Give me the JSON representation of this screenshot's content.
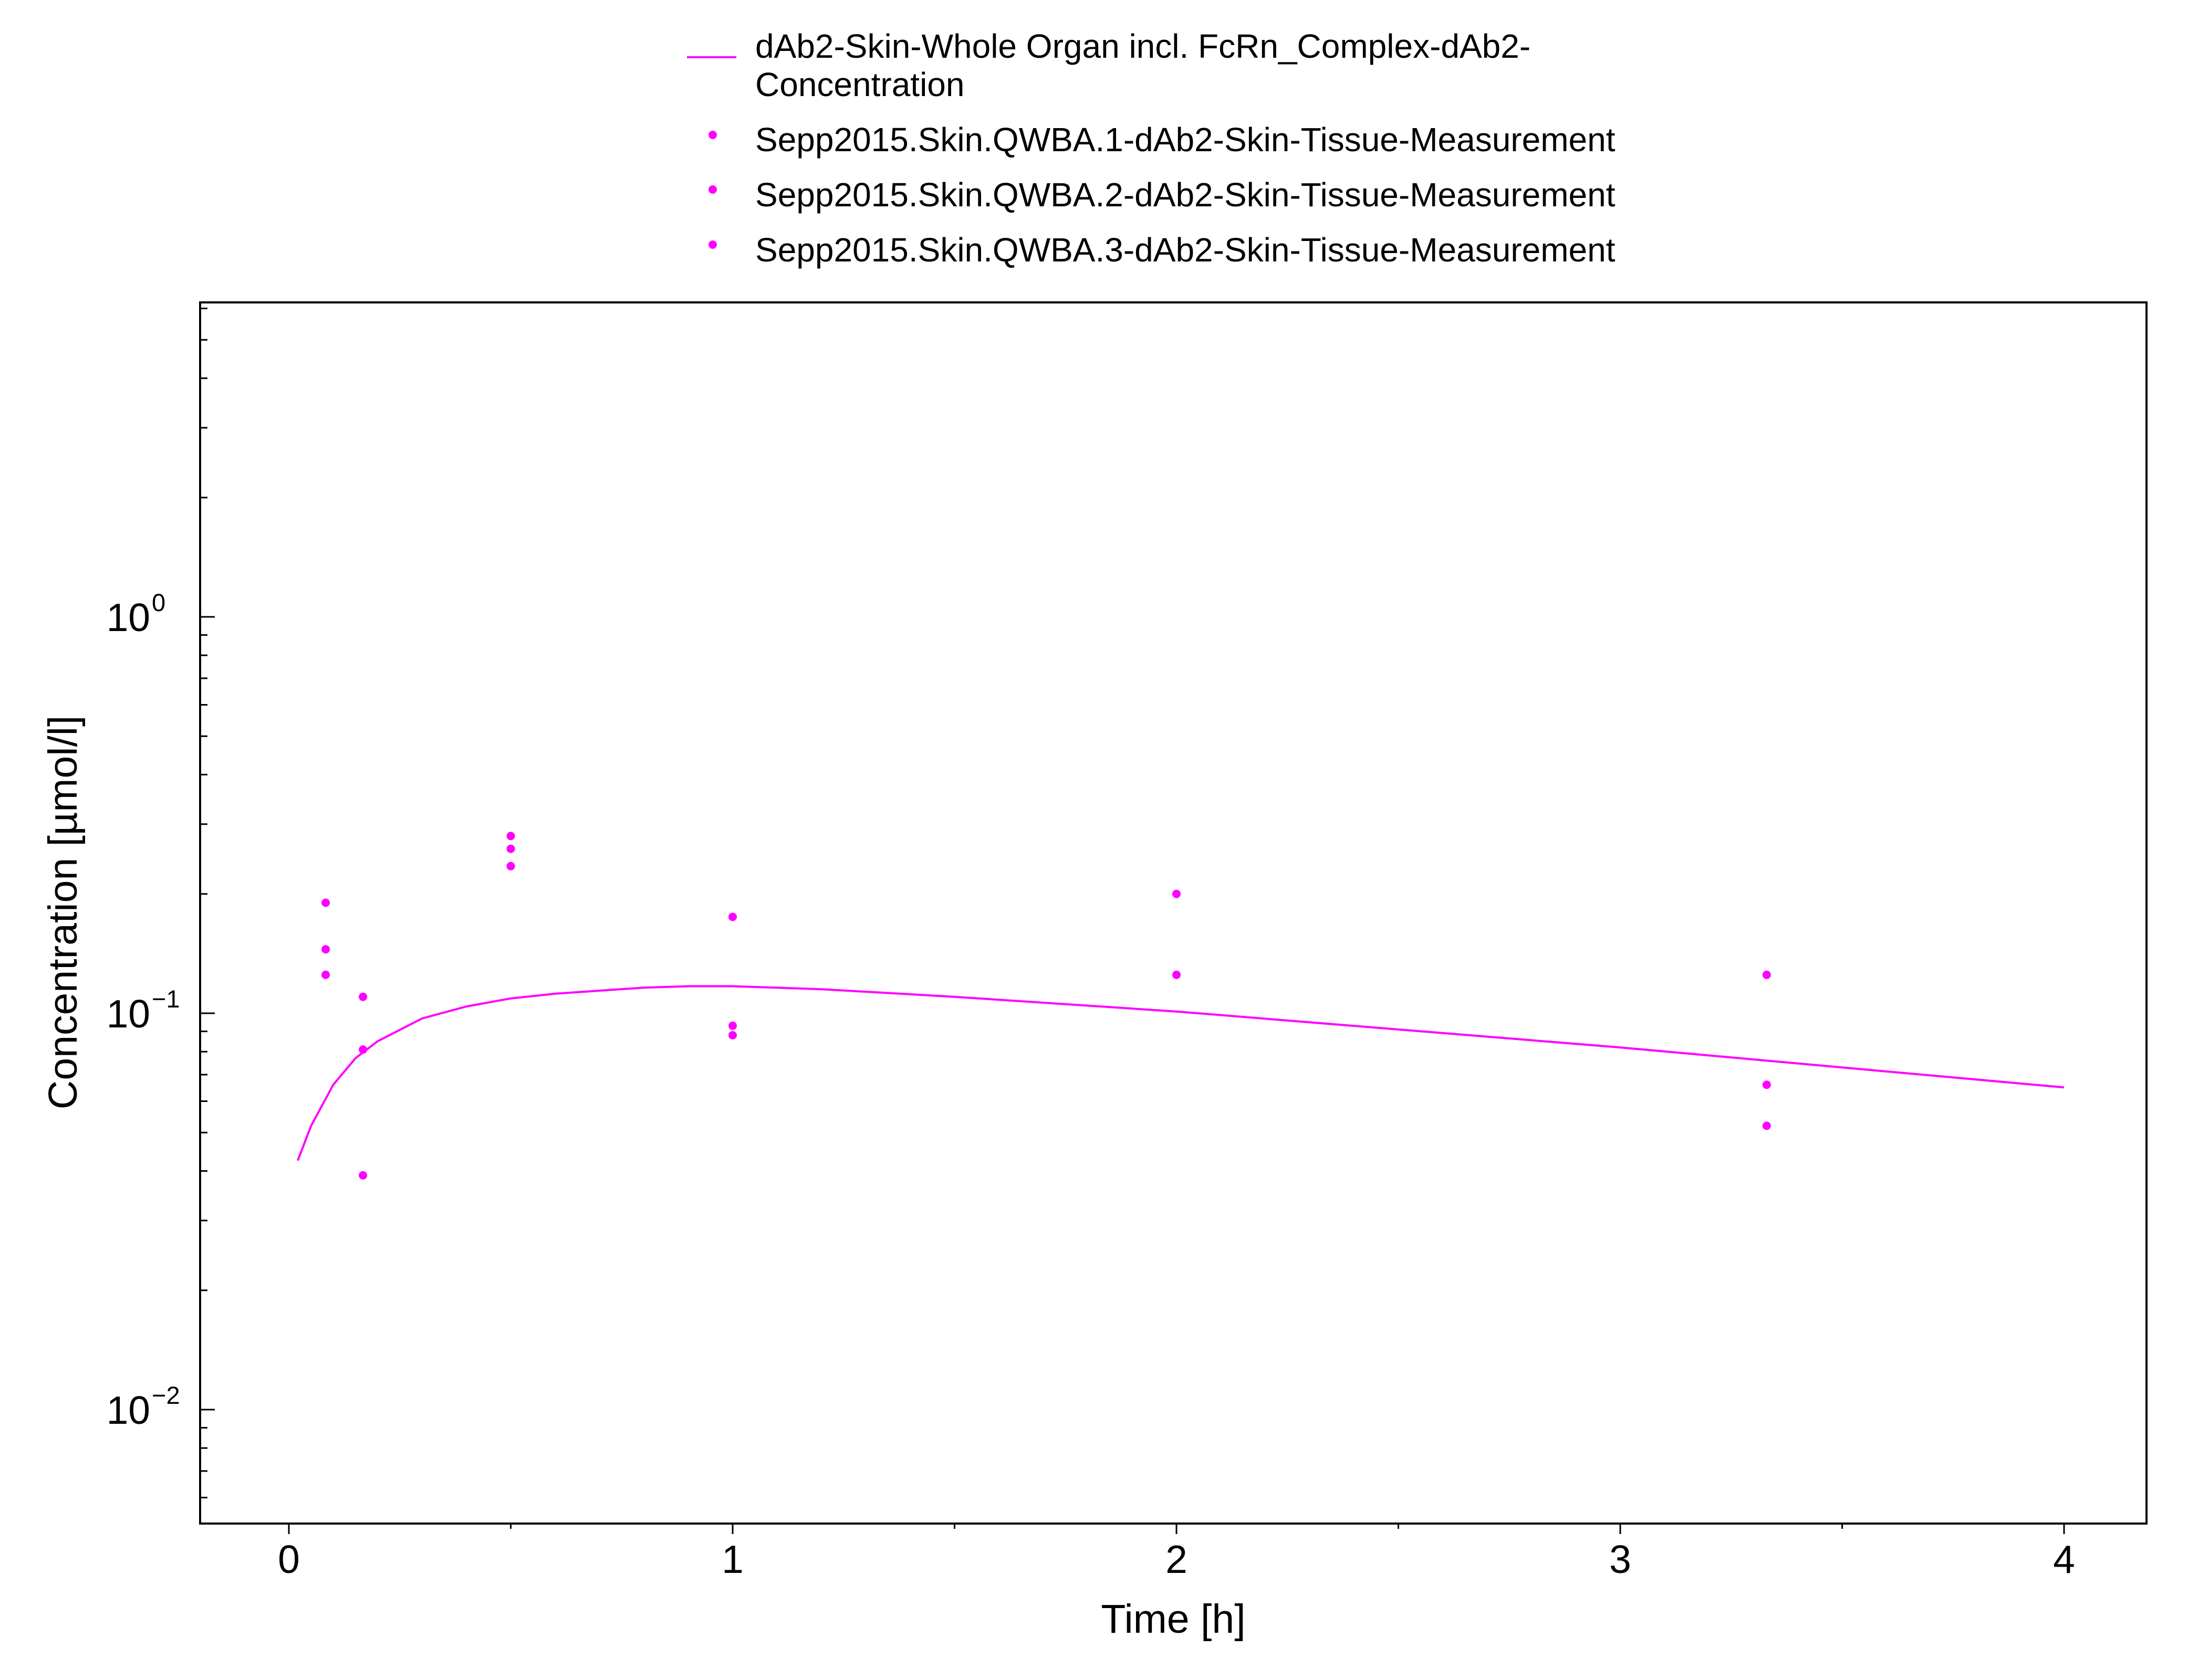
{
  "chart_data": {
    "type": "line+scatter",
    "title": "",
    "xlabel": "Time [h]",
    "ylabel": "Concentration [µmol/l]",
    "xlim": [
      -0.2,
      4.2
    ],
    "ylim": [
      0.005,
      5
    ],
    "yscale": "log",
    "grid": false,
    "legend_placement": "top-center",
    "x_ticks": [
      0,
      1,
      2,
      3,
      4
    ],
    "x_tick_labels": [
      "0",
      "1",
      "2",
      "3",
      "4"
    ],
    "y_ticks": [
      {
        "value": 0.01,
        "base": "10",
        "exp": "−2"
      },
      {
        "value": 0.1,
        "base": "10",
        "exp": "−1"
      },
      {
        "value": 1,
        "base": "10",
        "exp": "0"
      }
    ],
    "series": [
      {
        "name": "dAb2-Skin-Whole Organ incl. FcRn_Complex-dAb2-Concentration",
        "legend_lines": [
          "dAb2-Skin-Whole Organ incl. FcRn_Complex-dAb2-",
          "Concentration"
        ],
        "kind": "line",
        "color": "#ff00ff",
        "x": [
          0.02,
          0.05,
          0.1,
          0.15,
          0.2,
          0.3,
          0.4,
          0.5,
          0.6,
          0.7,
          0.8,
          0.9,
          1.0,
          1.2,
          1.5,
          2.0,
          2.5,
          3.0,
          3.5,
          4.0
        ],
        "y": [
          0.0425,
          0.052,
          0.066,
          0.077,
          0.085,
          0.097,
          0.104,
          0.109,
          0.112,
          0.114,
          0.116,
          0.117,
          0.117,
          0.115,
          0.11,
          0.101,
          0.091,
          0.082,
          0.073,
          0.065
        ]
      },
      {
        "name": "Sepp2015.Skin.QWBA.1-dAb2-Skin-Tissue-Measurement",
        "kind": "scatter",
        "color": "#ff00ff",
        "x": [
          0.083,
          0.167,
          0.5,
          1.0,
          2.0,
          3.33
        ],
        "y": [
          0.19,
          0.11,
          0.28,
          0.175,
          0.2,
          0.125
        ]
      },
      {
        "name": "Sepp2015.Skin.QWBA.2-dAb2-Skin-Tissue-Measurement",
        "kind": "scatter",
        "color": "#ff00ff",
        "x": [
          0.083,
          0.167,
          0.5,
          1.0,
          2.0,
          3.33
        ],
        "y": [
          0.145,
          0.081,
          0.26,
          0.093,
          0.125,
          0.066
        ]
      },
      {
        "name": "Sepp2015.Skin.QWBA.3-dAb2-Skin-Tissue-Measurement",
        "kind": "scatter",
        "color": "#ff00ff",
        "x": [
          0.083,
          0.167,
          0.5,
          1.0,
          3.33
        ],
        "y": [
          0.125,
          0.039,
          0.235,
          0.088,
          0.052
        ]
      }
    ]
  }
}
